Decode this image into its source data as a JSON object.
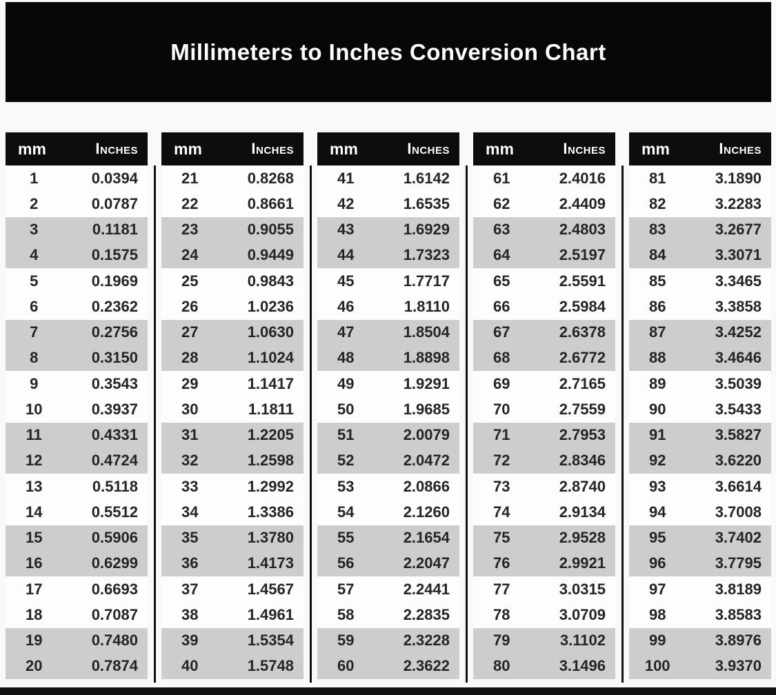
{
  "title": "Millimeters to Inches Conversion Chart",
  "header": {
    "mm_label": "mm",
    "inches_label": "Inches"
  },
  "colors": {
    "banner_bg": "#070707",
    "header_bg": "#0d0d0d",
    "row_shaded_bg": "#cdcdcd",
    "row_plain_bg": "#fdfdfd",
    "text": "#242424",
    "divider": "#111111"
  },
  "layout_note": "5 column-groups of 20 rows each; body rows shaded in alternating pairs (2 white, 2 gray)",
  "chart_data": {
    "type": "table",
    "title": "Millimeters to Inches Conversion Chart",
    "columns": [
      "mm",
      "Inches"
    ],
    "rows": [
      [
        1,
        "0.0394"
      ],
      [
        2,
        "0.0787"
      ],
      [
        3,
        "0.1181"
      ],
      [
        4,
        "0.1575"
      ],
      [
        5,
        "0.1969"
      ],
      [
        6,
        "0.2362"
      ],
      [
        7,
        "0.2756"
      ],
      [
        8,
        "0.3150"
      ],
      [
        9,
        "0.3543"
      ],
      [
        10,
        "0.3937"
      ],
      [
        11,
        "0.4331"
      ],
      [
        12,
        "0.4724"
      ],
      [
        13,
        "0.5118"
      ],
      [
        14,
        "0.5512"
      ],
      [
        15,
        "0.5906"
      ],
      [
        16,
        "0.6299"
      ],
      [
        17,
        "0.6693"
      ],
      [
        18,
        "0.7087"
      ],
      [
        19,
        "0.7480"
      ],
      [
        20,
        "0.7874"
      ],
      [
        21,
        "0.8268"
      ],
      [
        22,
        "0.8661"
      ],
      [
        23,
        "0.9055"
      ],
      [
        24,
        "0.9449"
      ],
      [
        25,
        "0.9843"
      ],
      [
        26,
        "1.0236"
      ],
      [
        27,
        "1.0630"
      ],
      [
        28,
        "1.1024"
      ],
      [
        29,
        "1.1417"
      ],
      [
        30,
        "1.1811"
      ],
      [
        31,
        "1.2205"
      ],
      [
        32,
        "1.2598"
      ],
      [
        33,
        "1.2992"
      ],
      [
        34,
        "1.3386"
      ],
      [
        35,
        "1.3780"
      ],
      [
        36,
        "1.4173"
      ],
      [
        37,
        "1.4567"
      ],
      [
        38,
        "1.4961"
      ],
      [
        39,
        "1.5354"
      ],
      [
        40,
        "1.5748"
      ],
      [
        41,
        "1.6142"
      ],
      [
        42,
        "1.6535"
      ],
      [
        43,
        "1.6929"
      ],
      [
        44,
        "1.7323"
      ],
      [
        45,
        "1.7717"
      ],
      [
        46,
        "1.8110"
      ],
      [
        47,
        "1.8504"
      ],
      [
        48,
        "1.8898"
      ],
      [
        49,
        "1.9291"
      ],
      [
        50,
        "1.9685"
      ],
      [
        51,
        "2.0079"
      ],
      [
        52,
        "2.0472"
      ],
      [
        53,
        "2.0866"
      ],
      [
        54,
        "2.1260"
      ],
      [
        55,
        "2.1654"
      ],
      [
        56,
        "2.2047"
      ],
      [
        57,
        "2.2441"
      ],
      [
        58,
        "2.2835"
      ],
      [
        59,
        "2.3228"
      ],
      [
        60,
        "2.3622"
      ],
      [
        61,
        "2.4016"
      ],
      [
        62,
        "2.4409"
      ],
      [
        63,
        "2.4803"
      ],
      [
        64,
        "2.5197"
      ],
      [
        65,
        "2.5591"
      ],
      [
        66,
        "2.5984"
      ],
      [
        67,
        "2.6378"
      ],
      [
        68,
        "2.6772"
      ],
      [
        69,
        "2.7165"
      ],
      [
        70,
        "2.7559"
      ],
      [
        71,
        "2.7953"
      ],
      [
        72,
        "2.8346"
      ],
      [
        73,
        "2.8740"
      ],
      [
        74,
        "2.9134"
      ],
      [
        75,
        "2.9528"
      ],
      [
        76,
        "2.9921"
      ],
      [
        77,
        "3.0315"
      ],
      [
        78,
        "3.0709"
      ],
      [
        79,
        "3.1102"
      ],
      [
        80,
        "3.1496"
      ],
      [
        81,
        "3.1890"
      ],
      [
        82,
        "3.2283"
      ],
      [
        83,
        "3.2677"
      ],
      [
        84,
        "3.3071"
      ],
      [
        85,
        "3.3465"
      ],
      [
        86,
        "3.3858"
      ],
      [
        87,
        "3.4252"
      ],
      [
        88,
        "3.4646"
      ],
      [
        89,
        "3.5039"
      ],
      [
        90,
        "3.5433"
      ],
      [
        91,
        "3.5827"
      ],
      [
        92,
        "3.6220"
      ],
      [
        93,
        "3.6614"
      ],
      [
        94,
        "3.7008"
      ],
      [
        95,
        "3.7402"
      ],
      [
        96,
        "3.7795"
      ],
      [
        97,
        "3.8189"
      ],
      [
        98,
        "3.8583"
      ],
      [
        99,
        "3.8976"
      ],
      [
        100,
        "3.9370"
      ]
    ]
  }
}
